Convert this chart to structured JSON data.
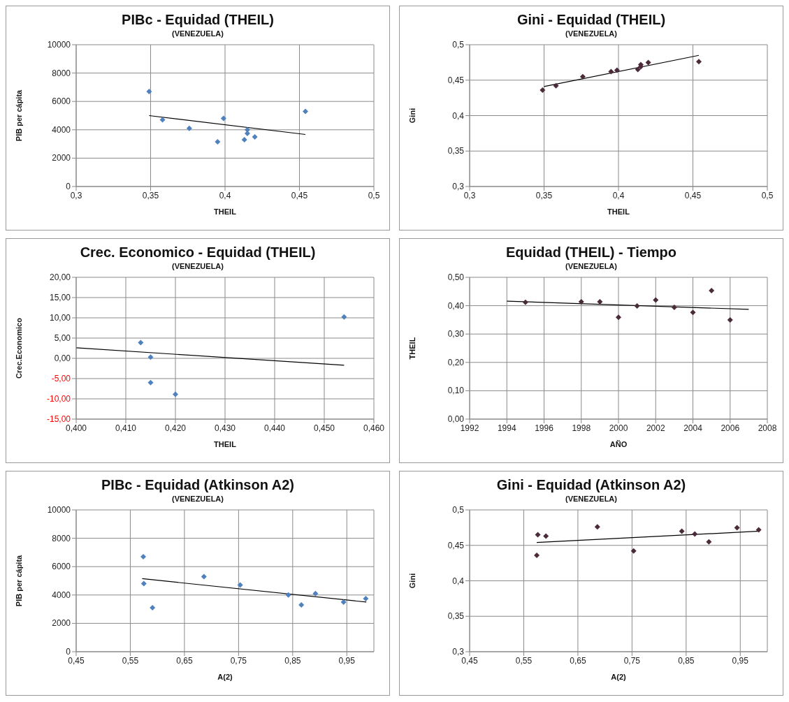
{
  "chart_data": [
    {
      "type": "scatter",
      "title": "PIBc - Equidad (THEIL)",
      "subtitle": "(VENEZUELA)",
      "xlabel": "THEIL",
      "ylabel": "PIB per cápita",
      "grid": true,
      "xlim": [
        0.3,
        0.5
      ],
      "xticks": [
        {
          "value": 0.3,
          "label": "0,3"
        },
        {
          "value": 0.35,
          "label": "0,35"
        },
        {
          "value": 0.4,
          "label": "0,4"
        },
        {
          "value": 0.45,
          "label": "0,45"
        },
        {
          "value": 0.5,
          "label": "0,5"
        }
      ],
      "ylim": [
        0,
        10000
      ],
      "yticks": [
        0,
        2000,
        4000,
        6000,
        8000,
        10000
      ],
      "series": [
        {
          "marker": "diamond",
          "color": "#4f81bd",
          "x": [
            0.349,
            0.358,
            0.376,
            0.395,
            0.399,
            0.413,
            0.415,
            0.415,
            0.42,
            0.454
          ],
          "values": [
            6700,
            4700,
            4100,
            3150,
            4800,
            3300,
            4000,
            3750,
            3500,
            5300
          ]
        },
        {
          "type": "line",
          "marker": "none",
          "color": "#000000",
          "x": [
            0.349,
            0.454
          ],
          "values": [
            5000,
            3670
          ]
        }
      ]
    },
    {
      "type": "scatter",
      "title": "Gini - Equidad (THEIL)",
      "subtitle": "(VENEZUELA)",
      "xlabel": "THEIL",
      "ylabel": "Gini",
      "grid": true,
      "xlim": [
        0.3,
        0.5
      ],
      "xticks": [
        {
          "value": 0.3,
          "label": "0,3"
        },
        {
          "value": 0.35,
          "label": "0,35"
        },
        {
          "value": 0.4,
          "label": "0,4"
        },
        {
          "value": 0.45,
          "label": "0,45"
        },
        {
          "value": 0.5,
          "label": "0,5"
        }
      ],
      "ylim": [
        0.3,
        0.5
      ],
      "yticks": [
        {
          "value": 0.3,
          "label": "0,3"
        },
        {
          "value": 0.35,
          "label": "0,35"
        },
        {
          "value": 0.4,
          "label": "0,4"
        },
        {
          "value": 0.45,
          "label": "0,45"
        },
        {
          "value": 0.5,
          "label": "0,5"
        }
      ],
      "series": [
        {
          "marker": "diamond",
          "color": "#4b2a3a",
          "x": [
            0.349,
            0.358,
            0.376,
            0.395,
            0.399,
            0.413,
            0.415,
            0.415,
            0.42,
            0.454
          ],
          "values": [
            0.436,
            0.442,
            0.455,
            0.462,
            0.464,
            0.465,
            0.472,
            0.469,
            0.475,
            0.476
          ]
        },
        {
          "type": "line",
          "marker": "none",
          "color": "#000000",
          "x": [
            0.35,
            0.454
          ],
          "values": [
            0.441,
            0.485
          ]
        }
      ]
    },
    {
      "type": "scatter",
      "title": "Crec. Economico - Equidad (THEIL)",
      "subtitle": "(VENEZUELA)",
      "xlabel": "THEIL",
      "ylabel": "Crec.Economico",
      "grid": true,
      "xlim": [
        0.4,
        0.46
      ],
      "xticks": [
        {
          "value": 0.4,
          "label": "0,400"
        },
        {
          "value": 0.41,
          "label": "0,410"
        },
        {
          "value": 0.42,
          "label": "0,420"
        },
        {
          "value": 0.43,
          "label": "0,430"
        },
        {
          "value": 0.44,
          "label": "0,440"
        },
        {
          "value": 0.45,
          "label": "0,450"
        },
        {
          "value": 0.46,
          "label": "0,460"
        }
      ],
      "ylim": [
        -15,
        20
      ],
      "yticks": [
        {
          "value": -15,
          "label": "-15,00"
        },
        {
          "value": -10,
          "label": "-10,00"
        },
        {
          "value": -5,
          "label": "-5,00"
        },
        {
          "value": 0,
          "label": "0,00"
        },
        {
          "value": 5,
          "label": "5,00"
        },
        {
          "value": 10,
          "label": "10,00"
        },
        {
          "value": 15,
          "label": "15,00"
        },
        {
          "value": 20,
          "label": "20,00"
        }
      ],
      "series": [
        {
          "marker": "diamond",
          "color": "#4f81bd",
          "x": [
            0.413,
            0.415,
            0.415,
            0.42,
            0.454
          ],
          "values": [
            3.9,
            0.3,
            -6.0,
            -8.9,
            10.2
          ]
        },
        {
          "type": "line",
          "marker": "none",
          "color": "#000000",
          "x": [
            0.4,
            0.454
          ],
          "values": [
            2.6,
            -1.7
          ]
        }
      ]
    },
    {
      "type": "scatter",
      "title": "Equidad (THEIL) - Tiempo",
      "subtitle": "(VENEZUELA)",
      "xlabel": "AÑO",
      "ylabel": "THEIL",
      "grid": true,
      "xlim": [
        1992,
        2008
      ],
      "xticks": [
        1992,
        1994,
        1996,
        1998,
        2000,
        2002,
        2004,
        2006,
        2008
      ],
      "ylim": [
        0,
        0.5
      ],
      "yticks": [
        {
          "value": 0,
          "label": "0,00"
        },
        {
          "value": 0.1,
          "label": "0,10"
        },
        {
          "value": 0.2,
          "label": "0,20"
        },
        {
          "value": 0.3,
          "label": "0,30"
        },
        {
          "value": 0.4,
          "label": "0,40"
        },
        {
          "value": 0.5,
          "label": "0,50"
        }
      ],
      "series": [
        {
          "marker": "diamond",
          "color": "#4b2a3a",
          "x": [
            1995,
            1998,
            1999,
            2000,
            2001,
            2002,
            2003,
            2004,
            2005,
            2006
          ],
          "values": [
            0.412,
            0.414,
            0.414,
            0.359,
            0.399,
            0.42,
            0.394,
            0.376,
            0.453,
            0.35
          ]
        },
        {
          "type": "line",
          "marker": "none",
          "color": "#000000",
          "x": [
            1994,
            2007
          ],
          "values": [
            0.416,
            0.387
          ]
        }
      ]
    },
    {
      "type": "scatter",
      "title": "PIBc - Equidad (Atkinson A2)",
      "subtitle": "(VENEZUELA)",
      "xlabel": "A(2)",
      "ylabel": "PIB per cápita",
      "grid": true,
      "xlim": [
        0.45,
        1.0
      ],
      "xticks": [
        {
          "value": 0.45,
          "label": "0,45"
        },
        {
          "value": 0.55,
          "label": "0,55"
        },
        {
          "value": 0.65,
          "label": "0,65"
        },
        {
          "value": 0.75,
          "label": "0,75"
        },
        {
          "value": 0.85,
          "label": "0,85"
        },
        {
          "value": 0.95,
          "label": "0,95"
        }
      ],
      "ylim": [
        0,
        10000
      ],
      "yticks": [
        0,
        2000,
        4000,
        6000,
        8000,
        10000
      ],
      "series": [
        {
          "marker": "diamond",
          "color": "#4f81bd",
          "x": [
            0.574,
            0.575,
            0.591,
            0.686,
            0.753,
            0.842,
            0.866,
            0.892,
            0.944,
            0.985
          ],
          "values": [
            6700,
            4800,
            3100,
            5300,
            4700,
            4000,
            3300,
            4100,
            3500,
            3750
          ]
        },
        {
          "type": "line",
          "marker": "none",
          "color": "#000000",
          "x": [
            0.572,
            0.986
          ],
          "values": [
            5150,
            3500
          ]
        }
      ]
    },
    {
      "type": "scatter",
      "title": "Gini - Equidad (Atkinson A2)",
      "subtitle": "(VENEZUELA)",
      "xlabel": "A(2)",
      "ylabel": "Gini",
      "grid": true,
      "xlim": [
        0.45,
        1.0
      ],
      "xticks": [
        {
          "value": 0.45,
          "label": "0,45"
        },
        {
          "value": 0.55,
          "label": "0,55"
        },
        {
          "value": 0.65,
          "label": "0,65"
        },
        {
          "value": 0.75,
          "label": "0,75"
        },
        {
          "value": 0.85,
          "label": "0,85"
        },
        {
          "value": 0.95,
          "label": "0,95"
        }
      ],
      "ylim": [
        0.3,
        0.5
      ],
      "yticks": [
        {
          "value": 0.3,
          "label": "0,3"
        },
        {
          "value": 0.35,
          "label": "0,35"
        },
        {
          "value": 0.4,
          "label": "0,4"
        },
        {
          "value": 0.45,
          "label": "0,45"
        },
        {
          "value": 0.5,
          "label": "0,5"
        }
      ],
      "series": [
        {
          "marker": "diamond",
          "color": "#4b2a3a",
          "x": [
            0.576,
            0.574,
            0.591,
            0.686,
            0.753,
            0.842,
            0.866,
            0.892,
            0.944,
            0.984
          ],
          "values": [
            0.465,
            0.436,
            0.463,
            0.476,
            0.442,
            0.47,
            0.466,
            0.455,
            0.475,
            0.472
          ]
        },
        {
          "type": "line",
          "marker": "none",
          "color": "#000000",
          "x": [
            0.574,
            0.986
          ],
          "values": [
            0.454,
            0.47
          ]
        }
      ]
    }
  ]
}
